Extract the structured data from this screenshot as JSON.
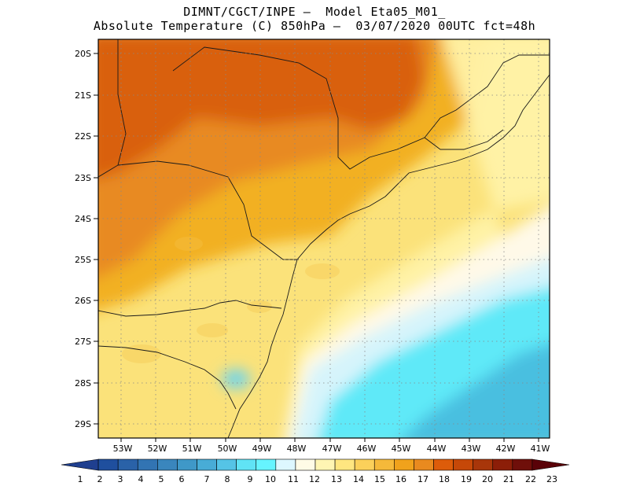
{
  "header": {
    "line1": "DIMNT/CGCT/INPE –  Model Eta05_M01_",
    "line2": "Absolute Temperature (C) 850hPa –  03/07/2020 00UTC fct=48h"
  },
  "map": {
    "lat_labels": [
      "20S",
      "21S",
      "22S",
      "23S",
      "24S",
      "25S",
      "26S",
      "27S",
      "28S",
      "29S"
    ],
    "lon_labels": [
      "53W",
      "52W",
      "51W",
      "50W",
      "49W",
      "48W",
      "47W",
      "46W",
      "45W",
      "44W",
      "43W",
      "42W",
      "41W"
    ]
  },
  "colorbar": {
    "labels": [
      "1",
      "2",
      "3",
      "4",
      "5",
      "6",
      "7",
      "8",
      "9",
      "10",
      "11",
      "12",
      "13",
      "14",
      "15",
      "16",
      "17",
      "18",
      "19",
      "20",
      "21",
      "22",
      "23"
    ],
    "colors": [
      "#1f3f8f",
      "#1f4f9e",
      "#2a62a8",
      "#3274b3",
      "#3a86bd",
      "#3f98c8",
      "#48acd6",
      "#55c4e6",
      "#60e3f5",
      "#66f4ff",
      "#ddf7ff",
      "#fffbe6",
      "#fff5b3",
      "#ffe680",
      "#fbd05a",
      "#f5b93a",
      "#f0a21c",
      "#e98a1f",
      "#dd5c0a",
      "#c64808",
      "#a8360a",
      "#8c1e08",
      "#6f0f0a",
      "#5a0208"
    ]
  }
}
